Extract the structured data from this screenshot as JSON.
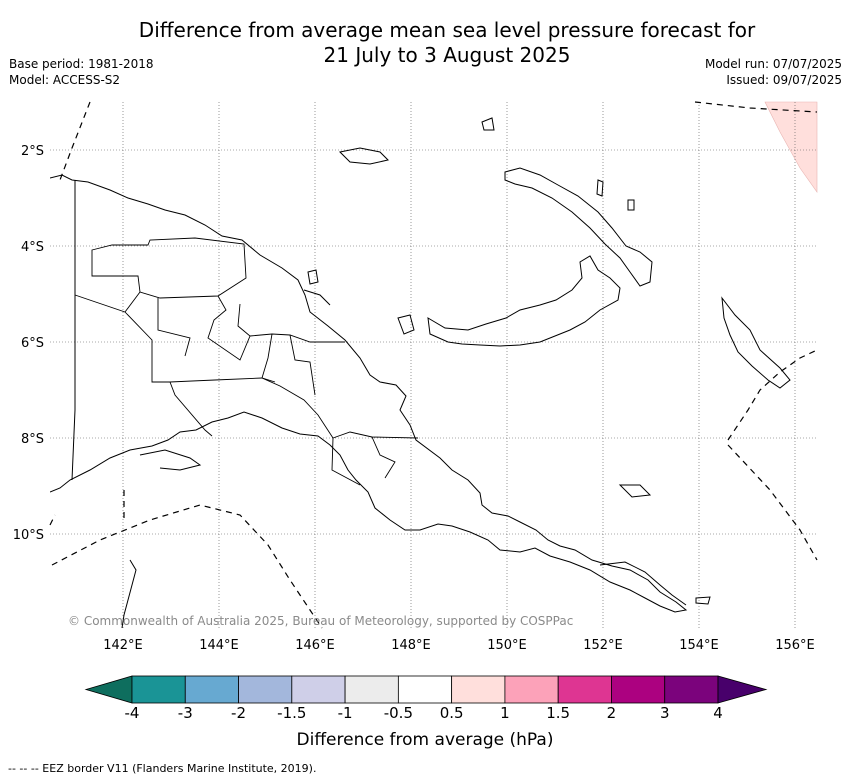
{
  "header": {
    "title_line1": "Difference from average mean sea level pressure forecast for",
    "title_line2": "21 July to 3 August 2025",
    "base_period": "Base period: 1981-2018",
    "model": "Model: ACCESS-S2",
    "model_run": "Model run: 07/07/2025",
    "issued": "Issued: 09/07/2025"
  },
  "map": {
    "region": "Papua New Guinea",
    "lat_labels": [
      "2°S",
      "4°S",
      "6°S",
      "8°S",
      "10°S"
    ],
    "lon_labels": [
      "142°E",
      "144°E",
      "146°E",
      "148°E",
      "150°E",
      "152°E",
      "154°E",
      "156°E"
    ],
    "anomaly_area_color": "#ffdfdc",
    "copyright": "© Commonwealth of Australia 2025, Bureau of Meteorology, supported by COSPPac"
  },
  "legend": {
    "title": "Difference from average (hPa)",
    "tick_labels": [
      "-4",
      "-3",
      "-2",
      "-1.5",
      "-1",
      "-0.5",
      "0.5",
      "1",
      "1.5",
      "2",
      "3",
      "4"
    ],
    "colors": [
      "#0e6e5e",
      "#1a9496",
      "#67a9d1",
      "#a3b7dc",
      "#cfcfe8",
      "#ececec",
      "#ffffff",
      "#ffdfdc",
      "#fca2b9",
      "#de3592",
      "#ac0180",
      "#7b037c",
      "#48006b"
    ]
  },
  "footer": {
    "eez_note": "--  --  -- EEZ border V11 (Flanders Marine Institute, 2019)."
  }
}
